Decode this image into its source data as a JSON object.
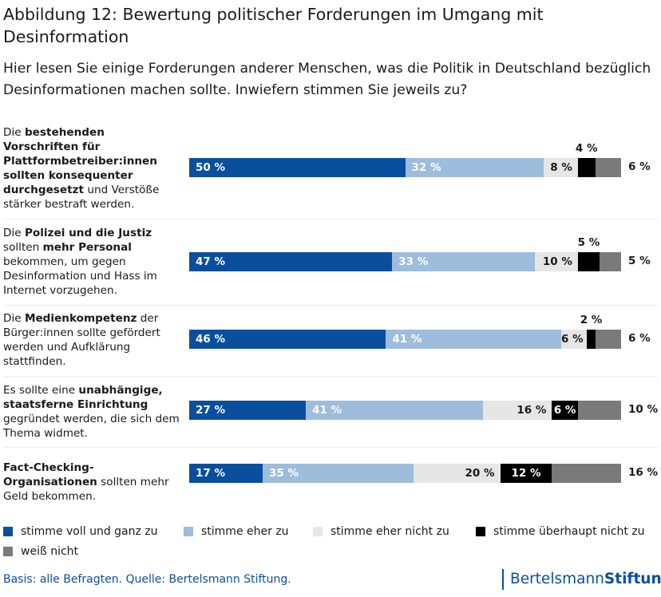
{
  "title": "Abbildung 12: Bewertung politischer Forderungen im Umgang mit Desinformation",
  "subtitle": "Hier lesen Sie einige Forderungen anderer Menschen, was die Politik in Deutschland bezüglich Desinformationen machen sollte. Inwiefern stimmen Sie jeweils zu?",
  "rows_text": [
    {
      "parts": [
        {
          "t": "Die ",
          "b": false
        },
        {
          "t": "bestehenden Vorschriften für Plattformbetreiber:innen sollten konsequenter durchgesetzt",
          "b": true
        },
        {
          "t": " und Verstöße stärker bestraft werden.",
          "b": false
        }
      ]
    },
    {
      "parts": [
        {
          "t": "Die ",
          "b": false
        },
        {
          "t": "Polizei und die Justiz",
          "b": true
        },
        {
          "t": " sollten ",
          "b": false
        },
        {
          "t": "mehr Personal",
          "b": true
        },
        {
          "t": " bekommen, um gegen Desinformation und Hass im Internet vorzugehen.",
          "b": false
        }
      ]
    },
    {
      "parts": [
        {
          "t": "Die ",
          "b": false
        },
        {
          "t": "Medienkompetenz",
          "b": true
        },
        {
          "t": " der Bürger:innen sollte gefördert werden und Aufklärung stattfinden.",
          "b": false
        }
      ]
    },
    {
      "parts": [
        {
          "t": "Es sollte eine ",
          "b": false
        },
        {
          "t": "unabhängige, staatsferne Einrichtung",
          "b": true
        },
        {
          "t": " gegründet werden, die sich dem Thema widmet.",
          "b": false
        }
      ]
    },
    {
      "parts": [
        {
          "t": "Fact-Checking-Organisationen",
          "b": true
        },
        {
          "t": " sollten mehr Geld bekommen.",
          "b": false
        }
      ]
    }
  ],
  "chart_data": {
    "type": "bar",
    "orientation": "horizontal",
    "stacked": true,
    "unit": "%",
    "categories": [
      "Die bestehenden Vorschriften für Plattformbetreiber:innen sollten konsequenter durchgesetzt und Verstöße stärker bestraft werden.",
      "Die Polizei und die Justiz sollten mehr Personal bekommen, um gegen Desinformation und Hass im Internet vorzugehen.",
      "Die Medienkompetenz der Bürger:innen sollte gefördert werden und Aufklärung stattfinden.",
      "Es sollte eine unabhängige, staatsferne Einrichtung gegründet werden, die sich dem Thema widmet.",
      "Fact-Checking-Organisationen sollten mehr Geld bekommen."
    ],
    "series": [
      {
        "name": "stimme voll und ganz zu",
        "color": "#0a4f9e",
        "values": [
          50,
          47,
          46,
          27,
          17
        ]
      },
      {
        "name": "stimme eher zu",
        "color": "#9ebcdb",
        "values": [
          32,
          33,
          41,
          41,
          35
        ]
      },
      {
        "name": "stimme eher nicht zu",
        "color": "#e6e6e6",
        "values": [
          8,
          10,
          6,
          16,
          20
        ]
      },
      {
        "name": "stimme überhaupt nicht zu",
        "color": "#000000",
        "values": [
          4,
          5,
          2,
          6,
          12
        ]
      },
      {
        "name": "weiß nicht",
        "color": "#7a7a7a",
        "values": [
          6,
          5,
          6,
          10,
          16
        ]
      }
    ],
    "labels": [
      [
        "50 %",
        "32 %",
        "8 %",
        "4 %",
        "6 %"
      ],
      [
        "47 %",
        "33 %",
        "10 %",
        "5 %",
        "5 %"
      ],
      [
        "46 %",
        "41 %",
        "6 %",
        "2 %",
        "6 %"
      ],
      [
        "27 %",
        "41 %",
        "16 %",
        "6 %",
        "10 %"
      ],
      [
        "17 %",
        "35 %",
        "20 %",
        "12 %",
        "16 %"
      ]
    ]
  },
  "source": "Basis: alle Befragten. Quelle: Bertelsmann Stiftung.",
  "brand": {
    "part1": "Bertelsmann",
    "part2": "Stiftung"
  }
}
